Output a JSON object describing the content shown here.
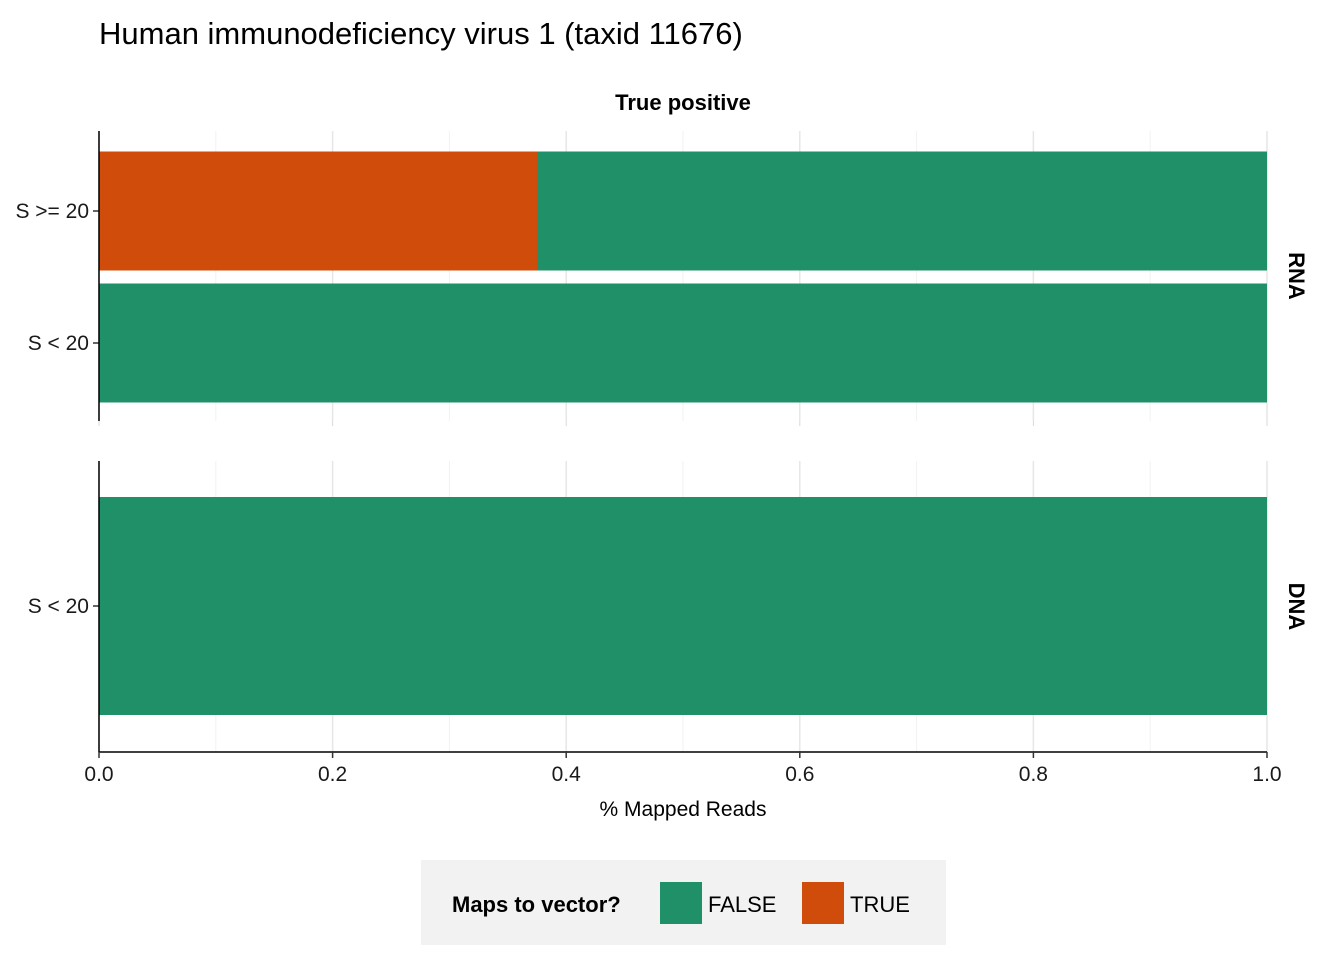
{
  "chart_data": {
    "type": "bar",
    "orientation": "horizontal",
    "stacked": true,
    "title": "Human immunodeficiency virus 1 (taxid 11676)",
    "column_facet": "True positive",
    "xlabel": "% Mapped Reads",
    "xlim": [
      0,
      1
    ],
    "xticks": [
      "0.0",
      "0.2",
      "0.4",
      "0.6",
      "0.8",
      "1.0"
    ],
    "grid": true,
    "legend": {
      "title": "Maps to vector?",
      "position": "bottom",
      "entries": [
        {
          "label": "FALSE",
          "color": "#1f9068"
        },
        {
          "label": "TRUE",
          "color": "#cf4c0a"
        }
      ]
    },
    "panels": [
      {
        "facet": "RNA",
        "categories": [
          "S >= 20",
          "S < 20"
        ],
        "series": [
          {
            "name": "TRUE",
            "values": [
              0.375,
              0
            ]
          },
          {
            "name": "FALSE",
            "values": [
              0.625,
              1.0
            ]
          }
        ]
      },
      {
        "facet": "DNA",
        "categories": [
          "S < 20"
        ],
        "series": [
          {
            "name": "TRUE",
            "values": [
              0
            ]
          },
          {
            "name": "FALSE",
            "values": [
              1.0
            ]
          }
        ]
      }
    ]
  }
}
